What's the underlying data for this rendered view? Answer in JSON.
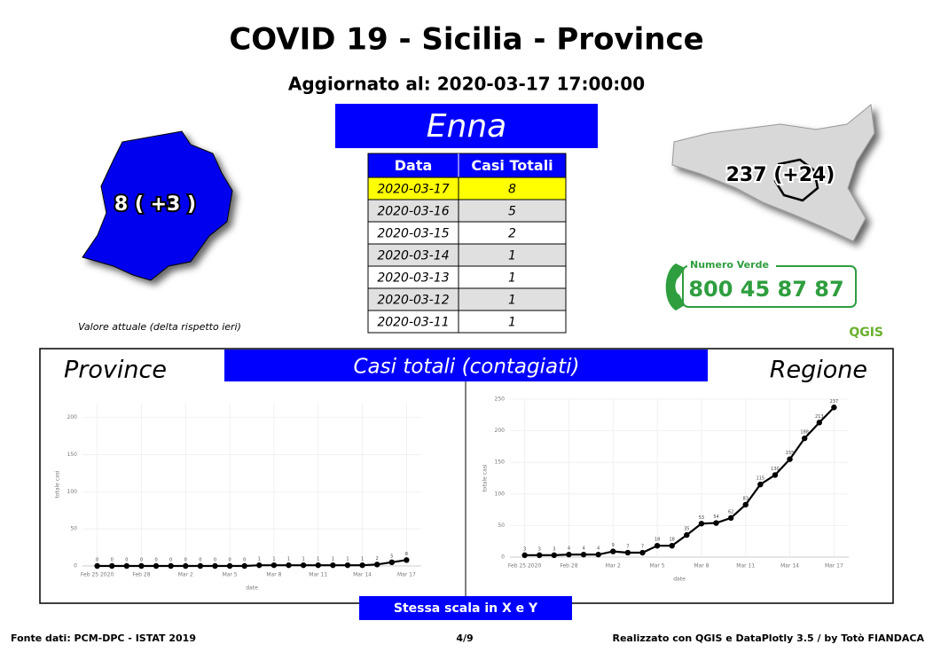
{
  "header": {
    "title": "COVID 19 - Sicilia - Province",
    "subtitle": "Aggiornato al: 2020-03-17 17:00:00",
    "province": "Enna"
  },
  "province_map": {
    "label": "8 ( +3 )",
    "caption": "Valore attuale (delta rispetto ieri)"
  },
  "region_map": {
    "label": "237 (+24)"
  },
  "hotline": {
    "title": "Numero Verde",
    "number": "800 45 87 87"
  },
  "logo": "QGIS",
  "table": {
    "header": [
      "Data",
      "Casi Totali"
    ],
    "rows": [
      [
        "2020-03-17",
        "8"
      ],
      [
        "2020-03-16",
        "5"
      ],
      [
        "2020-03-15",
        "2"
      ],
      [
        "2020-03-14",
        "1"
      ],
      [
        "2020-03-13",
        "1"
      ],
      [
        "2020-03-12",
        "1"
      ],
      [
        "2020-03-11",
        "1"
      ]
    ]
  },
  "charts_banner": "Casi totali (contagiati)",
  "charts_note": "Stessa scala in X e Y",
  "chart_data": [
    {
      "type": "line",
      "title": "Province",
      "xlabel": "date",
      "ylabel": "totale casi",
      "color": "#000000",
      "grid": true,
      "x": [
        "2020-02-25",
        "2020-02-26",
        "2020-02-27",
        "2020-02-28",
        "2020-02-29",
        "2020-03-01",
        "2020-03-02",
        "2020-03-03",
        "2020-03-04",
        "2020-03-05",
        "2020-03-06",
        "2020-03-07",
        "2020-03-08",
        "2020-03-09",
        "2020-03-10",
        "2020-03-11",
        "2020-03-12",
        "2020-03-13",
        "2020-03-14",
        "2020-03-15",
        "2020-03-16",
        "2020-03-17"
      ],
      "values": [
        0,
        0,
        0,
        0,
        0,
        0,
        0,
        0,
        0,
        0,
        0,
        1,
        1,
        1,
        1,
        1,
        1,
        1,
        1,
        2,
        5,
        8
      ],
      "xlim": [
        "2020-02-24",
        "2020-03-18"
      ],
      "xticks": [
        {
          "value": "2020-02-25",
          "label": "Feb 25 2020"
        },
        {
          "value": "2020-02-28",
          "label": "Feb 28"
        },
        {
          "value": "2020-03-02",
          "label": "Mar 2"
        },
        {
          "value": "2020-03-05",
          "label": "Mar 5"
        },
        {
          "value": "2020-03-08",
          "label": "Mar 8"
        },
        {
          "value": "2020-03-11",
          "label": "Mar 11"
        },
        {
          "value": "2020-03-14",
          "label": "Mar 14"
        },
        {
          "value": "2020-03-17",
          "label": "Mar 17"
        }
      ],
      "ylim": [
        0,
        220
      ],
      "yticks": [
        0,
        50,
        100,
        150,
        200
      ]
    },
    {
      "type": "line",
      "title": "Regione",
      "xlabel": "date",
      "ylabel": "totale casi",
      "color": "#000000",
      "grid": true,
      "x": [
        "2020-02-25",
        "2020-02-26",
        "2020-02-27",
        "2020-02-28",
        "2020-02-29",
        "2020-03-01",
        "2020-03-02",
        "2020-03-03",
        "2020-03-04",
        "2020-03-05",
        "2020-03-06",
        "2020-03-07",
        "2020-03-08",
        "2020-03-09",
        "2020-03-10",
        "2020-03-11",
        "2020-03-12",
        "2020-03-13",
        "2020-03-14",
        "2020-03-15",
        "2020-03-16",
        "2020-03-17"
      ],
      "values": [
        3,
        3,
        3,
        4,
        4,
        4,
        9,
        7,
        7,
        18,
        18,
        35,
        53,
        54,
        62,
        83,
        115,
        130,
        155,
        188,
        213,
        237
      ],
      "xlim": [
        "2020-02-24",
        "2020-03-18"
      ],
      "xticks": [
        {
          "value": "2020-02-25",
          "label": "Feb 25 2020"
        },
        {
          "value": "2020-02-28",
          "label": "Feb 28"
        },
        {
          "value": "2020-03-02",
          "label": "Mar 2"
        },
        {
          "value": "2020-03-05",
          "label": "Mar 5"
        },
        {
          "value": "2020-03-08",
          "label": "Mar 8"
        },
        {
          "value": "2020-03-11",
          "label": "Mar 11"
        },
        {
          "value": "2020-03-14",
          "label": "Mar 14"
        },
        {
          "value": "2020-03-17",
          "label": "Mar 17"
        }
      ],
      "ylim": [
        0,
        250
      ],
      "yticks": [
        0,
        50,
        100,
        150,
        200,
        250
      ]
    }
  ],
  "footer": {
    "source": "Fonte dati: PCM-DPC - ISTAT 2019",
    "page": "4/9",
    "credits": "Realizzato con QGIS e DataPlotly 3.5 / by Totò FIANDACA"
  }
}
